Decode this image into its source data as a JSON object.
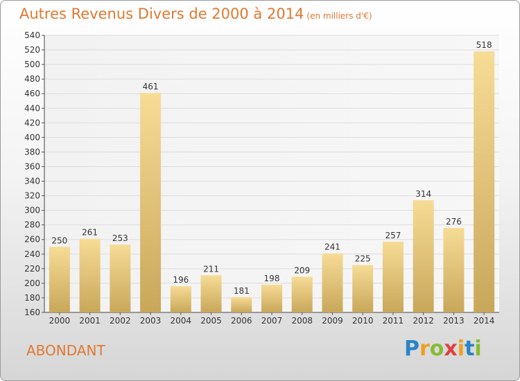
{
  "title": "Autres Revenus Divers de 2000 à 2014",
  "subtitle": "(en milliers d'€)",
  "commune": "ABONDANT",
  "logo": {
    "letters": [
      "P",
      "r",
      "o",
      "x",
      "i",
      "t",
      "i"
    ],
    "colors": [
      "#2a84c6",
      "#f0a020",
      "#88bb33",
      "#e04040",
      "#f0a020",
      "#2a84c6",
      "#88bb33"
    ]
  },
  "chart_data": {
    "type": "bar",
    "categories": [
      "2000",
      "2001",
      "2002",
      "2003",
      "2004",
      "2005",
      "2006",
      "2007",
      "2008",
      "2009",
      "2010",
      "2011",
      "2012",
      "2013",
      "2014"
    ],
    "values": [
      250,
      261,
      253,
      461,
      196,
      211,
      181,
      198,
      209,
      241,
      225,
      257,
      314,
      276,
      518
    ],
    "ylim": [
      160,
      540
    ],
    "yticks": [
      160,
      180,
      200,
      220,
      240,
      260,
      280,
      300,
      320,
      340,
      360,
      380,
      400,
      420,
      440,
      460,
      480,
      500,
      520,
      540
    ],
    "grid": true,
    "bar_color_top": "#f7dc96",
    "bar_color_bottom": "#c8a75a"
  }
}
